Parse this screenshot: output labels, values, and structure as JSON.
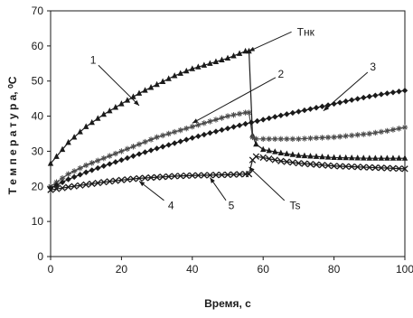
{
  "chart_data": {
    "type": "line",
    "title": "",
    "xlabel": "Время, с",
    "ylabel": "Т е м п е р а т у р а, ⁰С",
    "xlim": [
      0,
      100
    ],
    "ylim": [
      0,
      70
    ],
    "xticks": [
      0,
      20,
      40,
      60,
      80,
      100
    ],
    "yticks": [
      0,
      10,
      20,
      30,
      40,
      50,
      60,
      70
    ],
    "xtick_labels": [
      "0",
      "20",
      "40",
      "60",
      "80",
      "100"
    ],
    "ytick_labels": [
      "0",
      "10",
      "20",
      "30",
      "40",
      "50",
      "60",
      "70"
    ],
    "grid": false,
    "legend": "none",
    "series": [
      {
        "name": "1",
        "marker": "triangle",
        "color": "#1a1a1a",
        "x": [
          0,
          5,
          10,
          15,
          20,
          25,
          30,
          35,
          40,
          45,
          50,
          55,
          56,
          57,
          58,
          60,
          65,
          70,
          75,
          80,
          85,
          90,
          95,
          100
        ],
        "y": [
          26.5,
          32.5,
          37,
          40.5,
          43.5,
          46.5,
          49,
          51.5,
          53.5,
          55,
          56.5,
          58.5,
          58.5,
          34.5,
          32,
          30.5,
          29.5,
          28.8,
          28.5,
          28.2,
          28.1,
          28,
          28,
          28
        ]
      },
      {
        "name": "2",
        "marker": "star",
        "color": "#4a4a4a",
        "x": [
          0,
          5,
          10,
          15,
          20,
          25,
          30,
          35,
          40,
          45,
          50,
          55,
          56,
          57,
          58,
          60,
          65,
          70,
          75,
          80,
          85,
          90,
          95,
          100
        ],
        "y": [
          20,
          23.5,
          26,
          28,
          30,
          32,
          34,
          35.5,
          37,
          38.5,
          40,
          41,
          41,
          34,
          33.5,
          33.5,
          33.5,
          33.5,
          33.8,
          34,
          34.5,
          35,
          35.8,
          36.8
        ]
      },
      {
        "name": "3",
        "marker": "diamond",
        "color": "#1a1a1a",
        "x": [
          0,
          5,
          10,
          15,
          20,
          25,
          30,
          35,
          40,
          45,
          50,
          55,
          60,
          65,
          70,
          75,
          80,
          85,
          90,
          95,
          100
        ],
        "y": [
          19.5,
          22,
          24,
          25.8,
          27.5,
          29.2,
          30.8,
          32.3,
          33.8,
          35.2,
          36.5,
          37.8,
          39,
          40.2,
          41.3,
          42.4,
          43.5,
          44.6,
          45.6,
          46.5,
          47.3
        ]
      },
      {
        "name": "4",
        "marker": "cross",
        "color": "#1a1a1a",
        "x": [
          0,
          5,
          10,
          15,
          20,
          25,
          30,
          35,
          40,
          45,
          50,
          55,
          56,
          57,
          58,
          60,
          65,
          70,
          75,
          80,
          85,
          90,
          95,
          100
        ],
        "y": [
          19,
          19.8,
          20.5,
          21.2,
          21.8,
          22.3,
          22.6,
          22.9,
          23.1,
          23.2,
          23.3,
          23.5,
          23.5,
          27.5,
          28.5,
          28.2,
          27.2,
          26.6,
          26.2,
          25.8,
          25.6,
          25.4,
          25.2,
          25
        ]
      }
    ],
    "labels": [
      {
        "text": "1",
        "x": 12,
        "y": 56
      },
      {
        "text": "2",
        "x": 65,
        "y": 52
      },
      {
        "text": "3",
        "x": 91,
        "y": 54
      },
      {
        "text": "4",
        "x": 34,
        "y": 14.5
      },
      {
        "text": "5",
        "x": 51,
        "y": 14.5
      },
      {
        "text": "Тнк",
        "x": 72,
        "y": 64
      },
      {
        "text": "Ts",
        "x": 69,
        "y": 14.5
      }
    ],
    "leaders": [
      {
        "from": [
          13.5,
          54.5
        ],
        "to": [
          25,
          43
        ]
      },
      {
        "from": [
          63.5,
          51
        ],
        "to": [
          40,
          38
        ]
      },
      {
        "from": [
          89.5,
          52.5
        ],
        "to": [
          77,
          41.5
        ]
      },
      {
        "from": [
          32,
          16
        ],
        "to": [
          25,
          21.5
        ]
      },
      {
        "from": [
          49.5,
          16
        ],
        "to": [
          45,
          22.5
        ]
      },
      {
        "from": [
          68,
          64
        ],
        "to": [
          56,
          58.5
        ]
      },
      {
        "from": [
          66,
          16
        ],
        "to": [
          56,
          25.5
        ]
      }
    ]
  }
}
